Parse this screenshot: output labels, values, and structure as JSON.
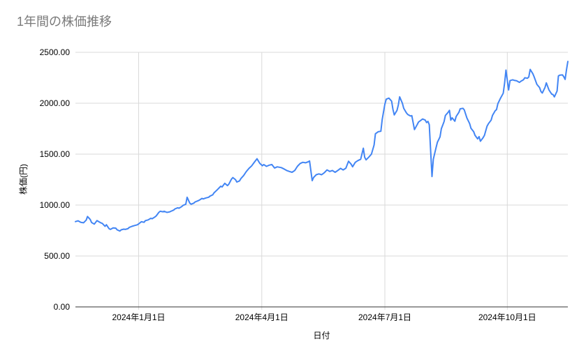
{
  "page_title": "1年間の株価推移",
  "colors": {
    "background": "#ffffff",
    "line": "#4285f4",
    "title_text": "#7a7a7a",
    "axis_text": "#000000",
    "gridline": "#d9d9d9",
    "axis_line": "#333333"
  },
  "chart_data": {
    "type": "line",
    "title": "1年間の株価推移",
    "xlabel": "日付",
    "ylabel": "株価(円)",
    "legend": "none",
    "grid": "horizontal gridlines + vertical date gridlines",
    "ylim": [
      0,
      2500
    ],
    "y_ticks": [
      {
        "value": 0,
        "label": "0.00"
      },
      {
        "value": 500,
        "label": "500.00"
      },
      {
        "value": 1000,
        "label": "1000.00"
      },
      {
        "value": 1500,
        "label": "1500.00"
      },
      {
        "value": 2000,
        "label": "2000.00"
      },
      {
        "value": 2500,
        "label": "2500.00"
      }
    ],
    "x_unit": "days_from_left_edge",
    "t_range": [
      0,
      366
    ],
    "x_ticks": [
      {
        "t": 47,
        "label": "2024年1月1日"
      },
      {
        "t": 138.5,
        "label": "2024年4月1日"
      },
      {
        "t": 230,
        "label": "2024年7月1日"
      },
      {
        "t": 321,
        "label": "2024年10月1日"
      }
    ],
    "series": [
      {
        "name": "株価",
        "color": "#4285f4",
        "points": [
          [
            0,
            838
          ],
          [
            2,
            845
          ],
          [
            4,
            830
          ],
          [
            6,
            826
          ],
          [
            8,
            852
          ],
          [
            9,
            888
          ],
          [
            11,
            858
          ],
          [
            12,
            829
          ],
          [
            14,
            813
          ],
          [
            16,
            847
          ],
          [
            17,
            840
          ],
          [
            19,
            825
          ],
          [
            20,
            820
          ],
          [
            22,
            791
          ],
          [
            23,
            807
          ],
          [
            25,
            768
          ],
          [
            26,
            761
          ],
          [
            28,
            775
          ],
          [
            30,
            773
          ],
          [
            31,
            757
          ],
          [
            33,
            745
          ],
          [
            34,
            757
          ],
          [
            36,
            764
          ],
          [
            37,
            761
          ],
          [
            39,
            768
          ],
          [
            40,
            780
          ],
          [
            42,
            791
          ],
          [
            44,
            799
          ],
          [
            46,
            806
          ],
          [
            47,
            815
          ],
          [
            49,
            836
          ],
          [
            51,
            831
          ],
          [
            52,
            847
          ],
          [
            54,
            854
          ],
          [
            56,
            870
          ],
          [
            57,
            866
          ],
          [
            59,
            882
          ],
          [
            60,
            893
          ],
          [
            62,
            928
          ],
          [
            63,
            939
          ],
          [
            65,
            934
          ],
          [
            66,
            939
          ],
          [
            68,
            928
          ],
          [
            70,
            933
          ],
          [
            71,
            939
          ],
          [
            73,
            951
          ],
          [
            74,
            962
          ],
          [
            76,
            973
          ],
          [
            77,
            969
          ],
          [
            79,
            985
          ],
          [
            80,
            997
          ],
          [
            82,
            1008
          ],
          [
            83,
            1077
          ],
          [
            85,
            1019
          ],
          [
            86,
            1008
          ],
          [
            88,
            1019
          ],
          [
            89,
            1031
          ],
          [
            91,
            1042
          ],
          [
            92,
            1047
          ],
          [
            94,
            1065
          ],
          [
            95,
            1060
          ],
          [
            97,
            1070
          ],
          [
            99,
            1077
          ],
          [
            100,
            1088
          ],
          [
            102,
            1100
          ],
          [
            103,
            1120
          ],
          [
            105,
            1145
          ],
          [
            106,
            1158
          ],
          [
            108,
            1185
          ],
          [
            109,
            1178
          ],
          [
            111,
            1214
          ],
          [
            113,
            1191
          ],
          [
            114,
            1205
          ],
          [
            116,
            1255
          ],
          [
            117,
            1270
          ],
          [
            119,
            1249
          ],
          [
            120,
            1226
          ],
          [
            122,
            1238
          ],
          [
            123,
            1260
          ],
          [
            125,
            1290
          ],
          [
            127,
            1329
          ],
          [
            129,
            1360
          ],
          [
            131,
            1385
          ],
          [
            133,
            1421
          ],
          [
            135,
            1455
          ],
          [
            137,
            1410
          ],
          [
            139,
            1386
          ],
          [
            140,
            1398
          ],
          [
            142,
            1380
          ],
          [
            144,
            1392
          ],
          [
            146,
            1398
          ],
          [
            148,
            1364
          ],
          [
            150,
            1375
          ],
          [
            153,
            1368
          ],
          [
            155,
            1355
          ],
          [
            157,
            1340
          ],
          [
            159,
            1330
          ],
          [
            161,
            1322
          ],
          [
            163,
            1340
          ],
          [
            165,
            1380
          ],
          [
            167,
            1408
          ],
          [
            169,
            1420
          ],
          [
            171,
            1415
          ],
          [
            173,
            1425
          ],
          [
            174,
            1433
          ],
          [
            176,
            1240
          ],
          [
            177,
            1270
          ],
          [
            179,
            1298
          ],
          [
            181,
            1306
          ],
          [
            183,
            1298
          ],
          [
            185,
            1318
          ],
          [
            187,
            1345
          ],
          [
            189,
            1330
          ],
          [
            191,
            1340
          ],
          [
            193,
            1322
          ],
          [
            195,
            1340
          ],
          [
            197,
            1360
          ],
          [
            199,
            1345
          ],
          [
            201,
            1362
          ],
          [
            203,
            1430
          ],
          [
            205,
            1400
          ],
          [
            206,
            1376
          ],
          [
            208,
            1420
          ],
          [
            210,
            1437
          ],
          [
            212,
            1450
          ],
          [
            214,
            1558
          ],
          [
            215,
            1470
          ],
          [
            216,
            1444
          ],
          [
            218,
            1470
          ],
          [
            220,
            1500
          ],
          [
            222,
            1590
          ],
          [
            223,
            1700
          ],
          [
            225,
            1720
          ],
          [
            227,
            1725
          ],
          [
            228,
            1840
          ],
          [
            230,
            1990
          ],
          [
            231,
            2040
          ],
          [
            233,
            2050
          ],
          [
            235,
            2020
          ],
          [
            236,
            1940
          ],
          [
            237,
            1885
          ],
          [
            239,
            1930
          ],
          [
            240,
            1983
          ],
          [
            241,
            2063
          ],
          [
            243,
            2000
          ],
          [
            244,
            1950
          ],
          [
            246,
            1905
          ],
          [
            247,
            1890
          ],
          [
            249,
            1875
          ],
          [
            250,
            1878
          ],
          [
            252,
            1741
          ],
          [
            254,
            1790
          ],
          [
            255,
            1815
          ],
          [
            257,
            1834
          ],
          [
            258,
            1845
          ],
          [
            260,
            1834
          ],
          [
            261,
            1810
          ],
          [
            262,
            1822
          ],
          [
            263,
            1790
          ],
          [
            265,
            1280
          ],
          [
            266,
            1450
          ],
          [
            268,
            1560
          ],
          [
            269,
            1616
          ],
          [
            271,
            1670
          ],
          [
            272,
            1750
          ],
          [
            274,
            1820
          ],
          [
            275,
            1880
          ],
          [
            277,
            1910
          ],
          [
            278,
            1930
          ],
          [
            279,
            1834
          ],
          [
            280,
            1857
          ],
          [
            282,
            1823
          ],
          [
            283,
            1870
          ],
          [
            285,
            1910
          ],
          [
            286,
            1945
          ],
          [
            288,
            1950
          ],
          [
            289,
            1935
          ],
          [
            291,
            1855
          ],
          [
            293,
            1800
          ],
          [
            294,
            1754
          ],
          [
            296,
            1720
          ],
          [
            297,
            1685
          ],
          [
            299,
            1650
          ],
          [
            300,
            1672
          ],
          [
            301,
            1627
          ],
          [
            303,
            1661
          ],
          [
            304,
            1685
          ],
          [
            306,
            1776
          ],
          [
            307,
            1800
          ],
          [
            309,
            1834
          ],
          [
            310,
            1880
          ],
          [
            312,
            1926
          ],
          [
            313,
            1938
          ],
          [
            314,
            1995
          ],
          [
            316,
            2051
          ],
          [
            318,
            2098
          ],
          [
            319,
            2200
          ],
          [
            320,
            2325
          ],
          [
            322,
            2130
          ],
          [
            323,
            2222
          ],
          [
            325,
            2230
          ],
          [
            326,
            2225
          ],
          [
            328,
            2220
          ],
          [
            330,
            2205
          ],
          [
            331,
            2215
          ],
          [
            333,
            2230
          ],
          [
            334,
            2250
          ],
          [
            336,
            2245
          ],
          [
            337,
            2258
          ],
          [
            338,
            2332
          ],
          [
            340,
            2290
          ],
          [
            341,
            2258
          ],
          [
            343,
            2185
          ],
          [
            345,
            2154
          ],
          [
            346,
            2115
          ],
          [
            347,
            2100
          ],
          [
            349,
            2155
          ],
          [
            350,
            2200
          ],
          [
            352,
            2130
          ],
          [
            354,
            2090
          ],
          [
            355,
            2085
          ],
          [
            356,
            2062
          ],
          [
            358,
            2120
          ],
          [
            359,
            2268
          ],
          [
            360,
            2275
          ],
          [
            362,
            2278
          ],
          [
            363,
            2260
          ],
          [
            364,
            2234
          ],
          [
            365,
            2330
          ],
          [
            366,
            2410
          ]
        ]
      }
    ]
  }
}
